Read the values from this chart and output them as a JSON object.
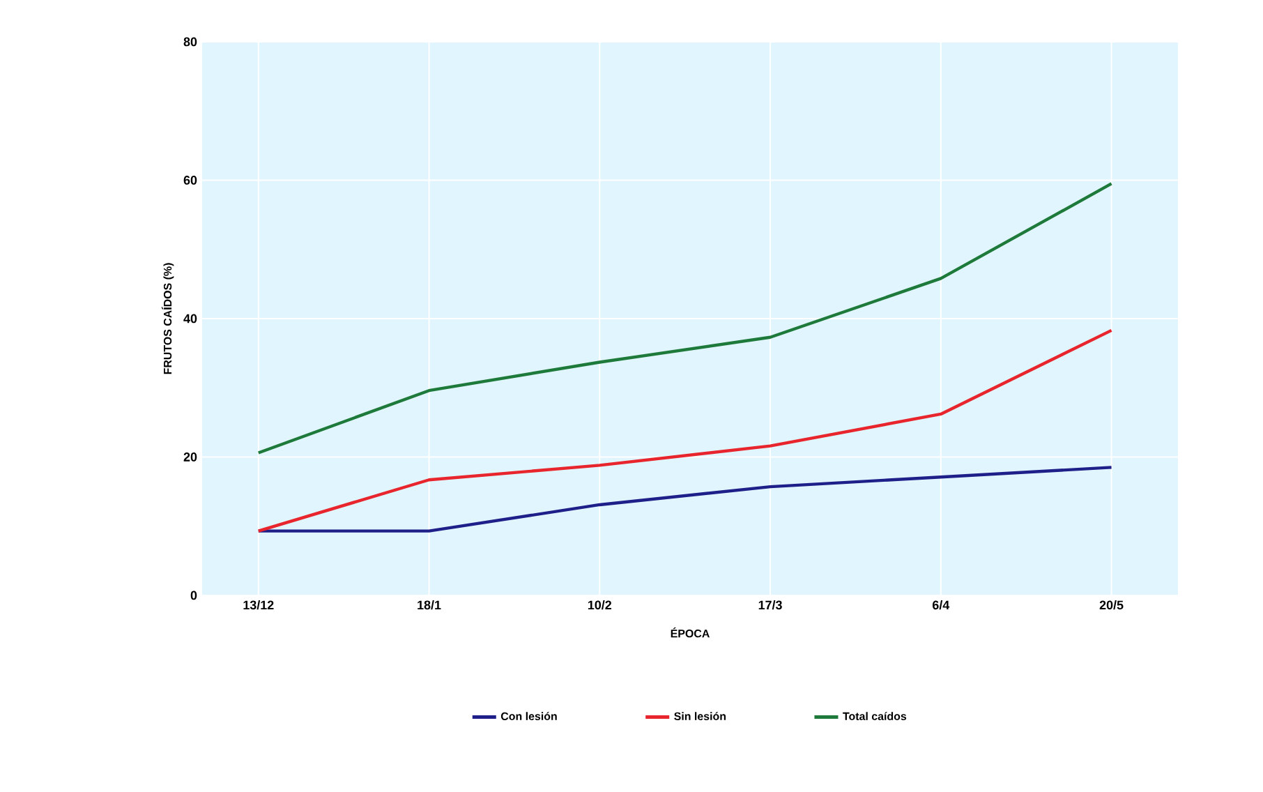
{
  "chart_data": {
    "type": "line",
    "xlabel": "ÉPOCA",
    "ylabel": "FRUTOS CAÍDOS (%)",
    "categories": [
      "13/12",
      "18/1",
      "10/2",
      "17/3",
      "6/4",
      "20/5"
    ],
    "series": [
      {
        "name": "Con lesión",
        "color": "#1f1f8a",
        "values": [
          9.3,
          9.3,
          13.1,
          15.7,
          17.1,
          18.5
        ]
      },
      {
        "name": "Sin lesión",
        "color": "#e8242c",
        "values": [
          9.3,
          16.7,
          18.8,
          21.6,
          26.2,
          38.3
        ]
      },
      {
        "name": "Total caídos",
        "color": "#1e7a3a",
        "values": [
          20.6,
          29.6,
          33.7,
          37.3,
          45.8,
          59.5
        ]
      }
    ],
    "ylim": [
      0,
      80
    ],
    "yticks": [
      0,
      20,
      40,
      60,
      80
    ],
    "grid": true,
    "legend": "bottom",
    "marker": "none",
    "line_style": "solid"
  }
}
